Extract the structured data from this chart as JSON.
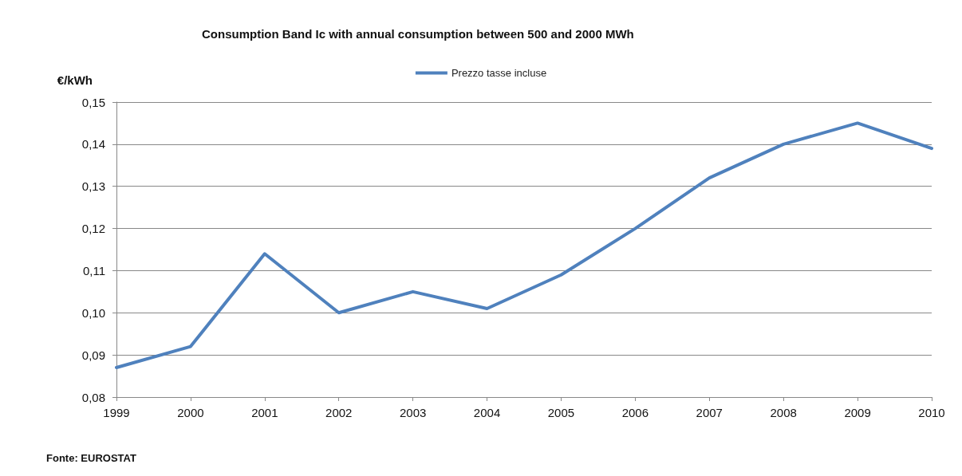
{
  "chart_data": {
    "type": "line",
    "title": "Consumption Band Ic with annual consumption between 500 and 2000 MWh",
    "ylabel": "€/kWh",
    "categories": [
      "1999",
      "2000",
      "2001",
      "2002",
      "2003",
      "2004",
      "2005",
      "2006",
      "2007",
      "2008",
      "2009",
      "2010"
    ],
    "series": [
      {
        "name": "Prezzo tasse incluse",
        "color": "#4f81bd",
        "values": [
          0.087,
          0.092,
          0.114,
          0.1,
          0.105,
          0.101,
          0.109,
          0.12,
          0.132,
          0.14,
          0.145,
          0.139
        ]
      }
    ],
    "ylim": [
      0.08,
      0.15
    ],
    "yticks": [
      {
        "value": 0.08,
        "label": "0,08"
      },
      {
        "value": 0.09,
        "label": "0,09"
      },
      {
        "value": 0.1,
        "label": "0,10"
      },
      {
        "value": 0.11,
        "label": "0,11"
      },
      {
        "value": 0.12,
        "label": "0,12"
      },
      {
        "value": 0.13,
        "label": "0,13"
      },
      {
        "value": 0.14,
        "label": "0,14"
      },
      {
        "value": 0.15,
        "label": "0,15"
      }
    ],
    "grid": "y",
    "legend": "top",
    "marker": "none",
    "line_style": "solid",
    "annotations": [
      "Fonte: EUROSTAT"
    ]
  }
}
